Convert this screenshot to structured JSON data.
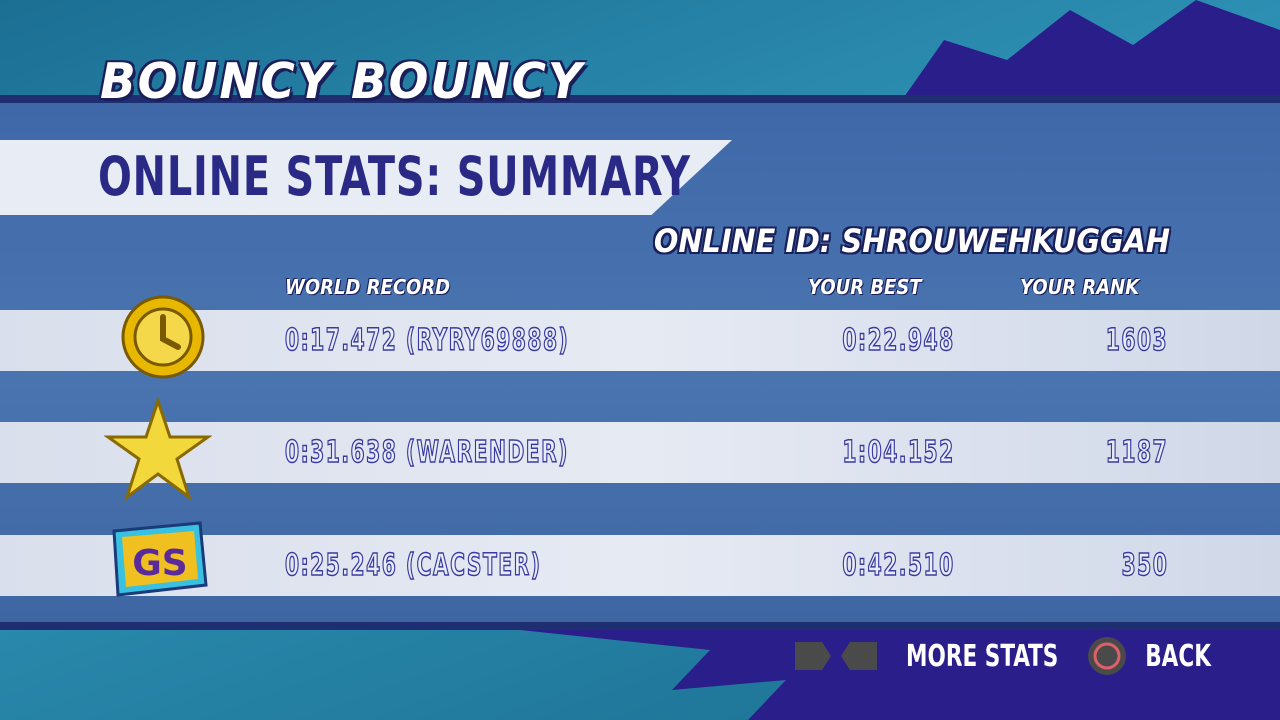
{
  "game_title": "BOUNCY BOUNCY",
  "screen_title": "ONLINE STATS: SUMMARY",
  "online_id": "ONLINE ID: SHROUWEHKUGGAH",
  "headers": {
    "world_record": "WORLD RECORD",
    "your_best": "YOUR BEST",
    "your_rank": "YOUR RANK"
  },
  "rows": [
    {
      "icon": "clock-icon",
      "world_record": "0:17.472 (RYRY69888)",
      "your_best": "0:22.948",
      "your_rank": "1603"
    },
    {
      "icon": "star-icon",
      "world_record": "0:31.638 (WARENDER)",
      "your_best": "1:04.152",
      "your_rank": "1187"
    },
    {
      "icon": "gs-badge-icon",
      "world_record": "0:25.246 (CACSTER)",
      "your_best": "0:42.510",
      "your_rank": "350"
    }
  ],
  "footer": {
    "more_stats": "MORE STATS",
    "back": "BACK"
  },
  "colors": {
    "panel": "#4a75b0",
    "text_outline": "#2a2a86",
    "circle_button": "#e0606a"
  }
}
